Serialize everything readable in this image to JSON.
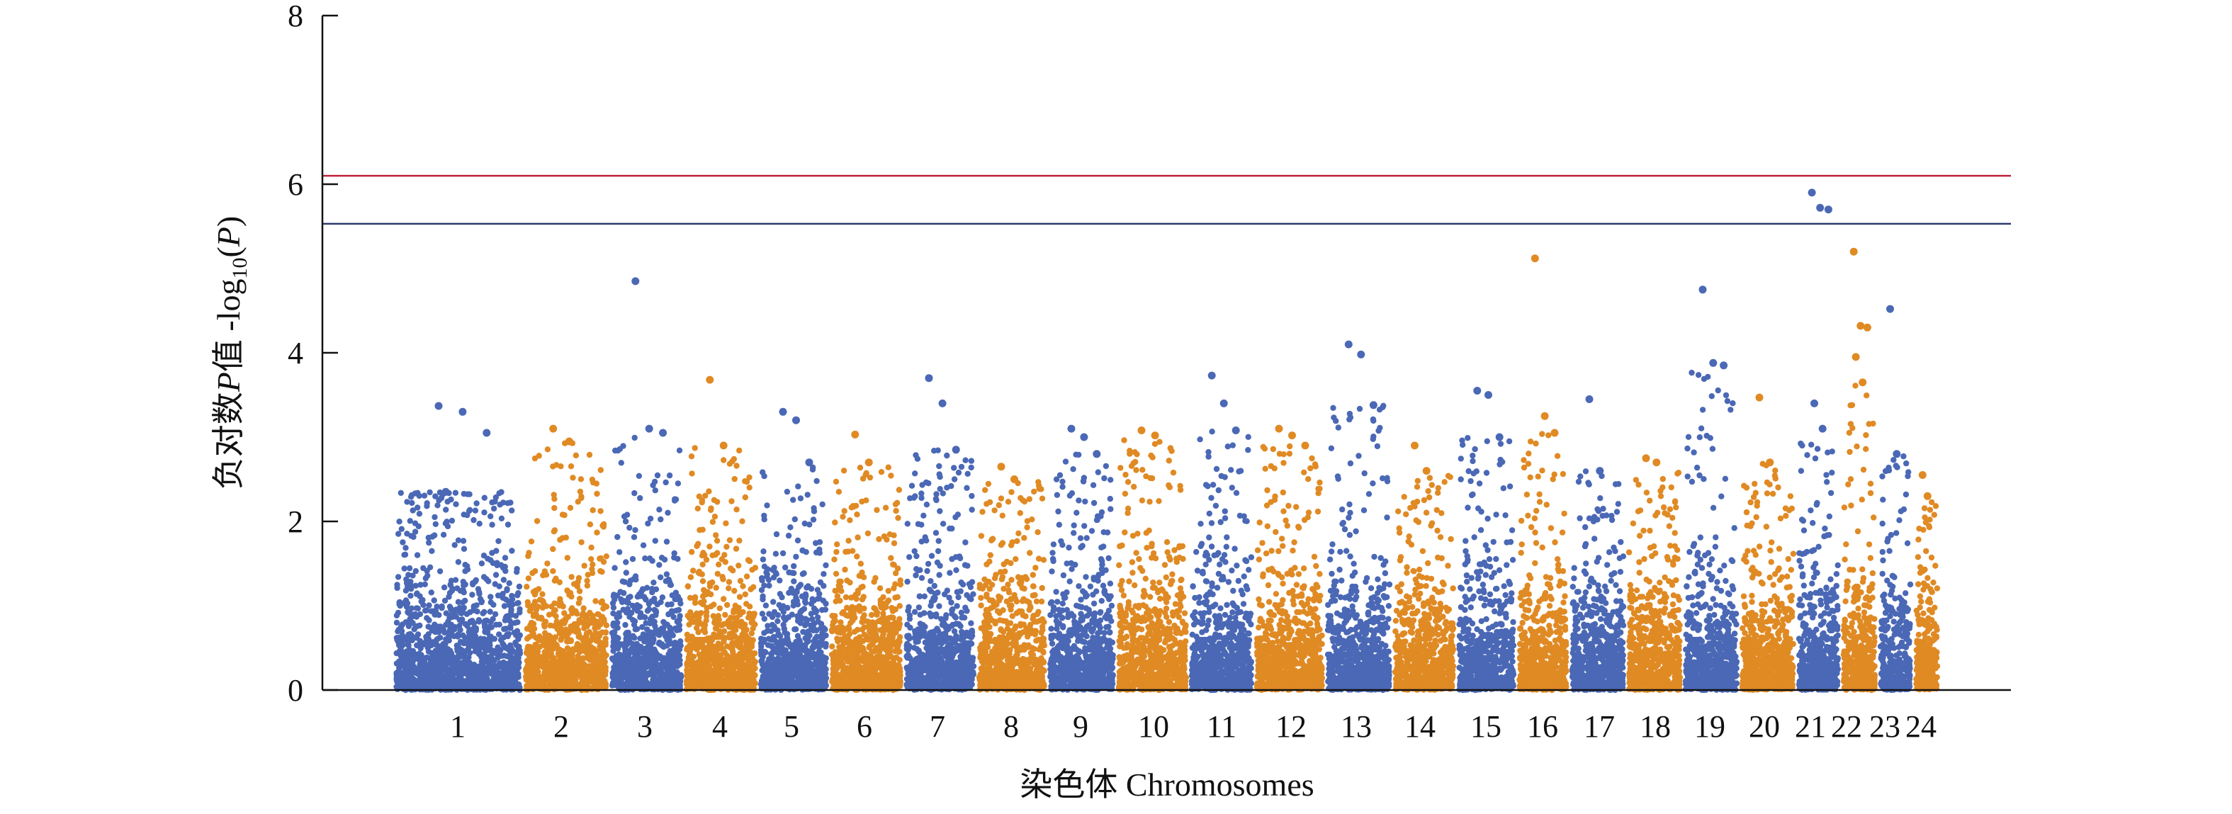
{
  "chart_data": {
    "type": "scatter",
    "title": "",
    "xlabel": "染色体 Chromosomes",
    "ylabel_parts": [
      "负对数",
      "P",
      "值 -log",
      "10",
      "(",
      "P",
      ")"
    ],
    "ylim": [
      0,
      8
    ],
    "yticks": [
      0,
      2,
      4,
      6,
      8
    ],
    "thresholds": [
      {
        "value": 6.1,
        "color": "#c0243a"
      },
      {
        "value": 5.53,
        "color": "#2c3a6e"
      }
    ],
    "colors": {
      "odd": "#4a68b5",
      "even": "#e08a24"
    },
    "categories": [
      "1",
      "2",
      "3",
      "4",
      "5",
      "6",
      "7",
      "8",
      "9",
      "10",
      "11",
      "12",
      "13",
      "14",
      "15",
      "16",
      "17",
      "18",
      "19",
      "20",
      "21",
      "22",
      "23",
      "24"
    ],
    "chromosomes": [
      {
        "label": "1",
        "density": 1.95,
        "max": 3.37,
        "outliers": [
          3.37,
          3.3,
          3.05,
          2.35
        ]
      },
      {
        "label": "2",
        "density": 1.7,
        "max": 3.1,
        "outliers": [
          3.1,
          2.95
        ]
      },
      {
        "label": "3",
        "density": 1.6,
        "max": 4.85,
        "outliers": [
          4.85,
          3.1,
          3.05
        ]
      },
      {
        "label": "4",
        "density": 1.75,
        "max": 3.68,
        "outliers": [
          3.68,
          2.9
        ]
      },
      {
        "label": "5",
        "density": 1.6,
        "max": 3.3,
        "outliers": [
          3.3,
          3.2,
          2.7
        ]
      },
      {
        "label": "6",
        "density": 1.75,
        "max": 3.03,
        "outliers": [
          3.03,
          2.7
        ]
      },
      {
        "label": "7",
        "density": 2.2,
        "max": 3.7,
        "outliers": [
          3.7,
          3.4,
          2.85
        ]
      },
      {
        "label": "8",
        "density": 1.75,
        "max": 2.65,
        "outliers": [
          2.65,
          2.5
        ]
      },
      {
        "label": "9",
        "density": 1.9,
        "max": 3.1,
        "outliers": [
          3.1,
          3.0,
          2.8
        ]
      },
      {
        "label": "10",
        "density": 1.9,
        "max": 3.08,
        "outliers": [
          3.08,
          3.02
        ]
      },
      {
        "label": "11",
        "density": 1.9,
        "max": 3.73,
        "outliers": [
          3.73,
          3.4,
          3.08
        ]
      },
      {
        "label": "12",
        "density": 2.0,
        "max": 3.1,
        "outliers": [
          3.1,
          3.02,
          2.9
        ]
      },
      {
        "label": "13",
        "density": 2.1,
        "max": 4.1,
        "outliers": [
          4.1,
          3.98,
          3.38
        ]
      },
      {
        "label": "14",
        "density": 1.8,
        "max": 2.9,
        "outliers": [
          2.9,
          2.6
        ]
      },
      {
        "label": "15",
        "density": 1.95,
        "max": 3.55,
        "outliers": [
          3.55,
          3.5,
          3.0
        ]
      },
      {
        "label": "16",
        "density": 1.9,
        "max": 5.12,
        "outliers": [
          5.12,
          3.25,
          3.05
        ]
      },
      {
        "label": "17",
        "density": 1.7,
        "max": 3.45,
        "outliers": [
          3.45,
          2.6
        ]
      },
      {
        "label": "18",
        "density": 1.85,
        "max": 2.75,
        "outliers": [
          2.75,
          2.7
        ]
      },
      {
        "label": "19",
        "density": 1.85,
        "max": 4.75,
        "outliers": [
          4.75,
          3.88,
          3.85
        ]
      },
      {
        "label": "20",
        "density": 1.95,
        "max": 3.47,
        "outliers": [
          3.47,
          2.7
        ]
      },
      {
        "label": "21",
        "density": 1.85,
        "max": 5.9,
        "outliers": [
          5.9,
          5.72,
          5.7,
          3.4,
          3.1
        ]
      },
      {
        "label": "22",
        "density": 2.3,
        "max": 5.2,
        "outliers": [
          5.2,
          4.32,
          4.3,
          3.95,
          3.65
        ]
      },
      {
        "label": "23",
        "density": 1.9,
        "max": 4.52,
        "outliers": [
          4.52,
          2.8
        ]
      },
      {
        "label": "24",
        "density": 1.7,
        "max": 2.55,
        "outliers": [
          2.55,
          2.3
        ]
      }
    ]
  }
}
